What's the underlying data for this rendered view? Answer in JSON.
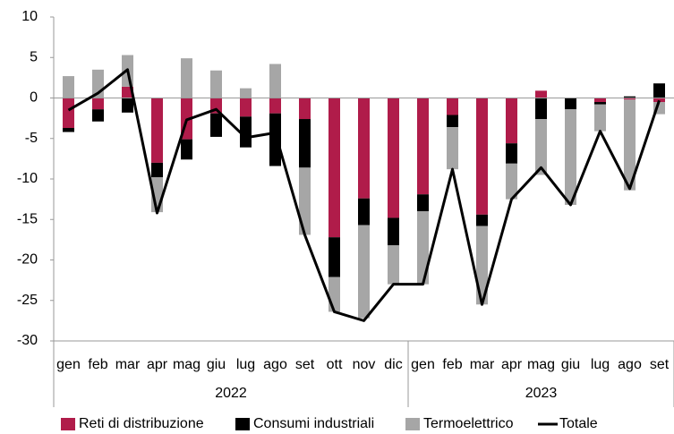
{
  "chart_data": {
    "type": "bar",
    "stacked": true,
    "groups": [
      {
        "label": "2022",
        "categories": [
          "gen",
          "feb",
          "mar",
          "apr",
          "mag",
          "giu",
          "lug",
          "ago",
          "set",
          "ott",
          "nov",
          "dic"
        ]
      },
      {
        "label": "2023",
        "categories": [
          "gen",
          "feb",
          "mar",
          "apr",
          "mag",
          "giu",
          "lug",
          "ago",
          "set"
        ]
      }
    ],
    "series": [
      {
        "name": "Reti di distribuzione",
        "type": "bar",
        "color": "#b01c4a",
        "values": [
          -3.7,
          -1.4,
          1.4,
          -8,
          -5.1,
          -1.9,
          -2.3,
          -1.9,
          -2.6,
          -17.2,
          -12.4,
          -14.8,
          -11.9,
          -2.1,
          -14.4,
          -5.6,
          0.9,
          0,
          -0.5,
          -0.2,
          -0.5
        ]
      },
      {
        "name": "Consumi industriali",
        "type": "bar",
        "color": "#000000",
        "values": [
          -0.5,
          -1.5,
          -1.8,
          -1.8,
          -2.5,
          -2.9,
          -3.8,
          -6.5,
          -6,
          -4.9,
          -3.3,
          -3.4,
          -2.1,
          -1.5,
          -1.4,
          -2.5,
          -2.6,
          -1.4,
          -0.3,
          0.2,
          1.8
        ]
      },
      {
        "name": "Termoelettrico",
        "type": "bar",
        "color": "#a6a6a6",
        "values": [
          2.7,
          3.5,
          3.9,
          -4.3,
          4.9,
          3.4,
          1.2,
          4.2,
          -8.3,
          -4.3,
          -11.5,
          -4.8,
          -9,
          -5.2,
          -9.7,
          -4.4,
          -6.9,
          -11.8,
          -3.3,
          -11.2,
          -1.5
        ]
      },
      {
        "name": "Totale",
        "type": "line",
        "color": "#000000",
        "values": [
          -1.5,
          0.6,
          3.5,
          -14.2,
          -2.7,
          -1.4,
          -4.9,
          -4.3,
          -16.9,
          -26.4,
          -27.5,
          -23,
          -23,
          -8.8,
          -25.5,
          -12.5,
          -8.6,
          -13.2,
          -4.1,
          -11.2,
          -0.3
        ]
      }
    ],
    "ylim": [
      -30,
      10
    ],
    "yticks": [
      10,
      5,
      0,
      -5,
      -10,
      -15,
      -20,
      -25,
      -30
    ],
    "grid": false
  }
}
